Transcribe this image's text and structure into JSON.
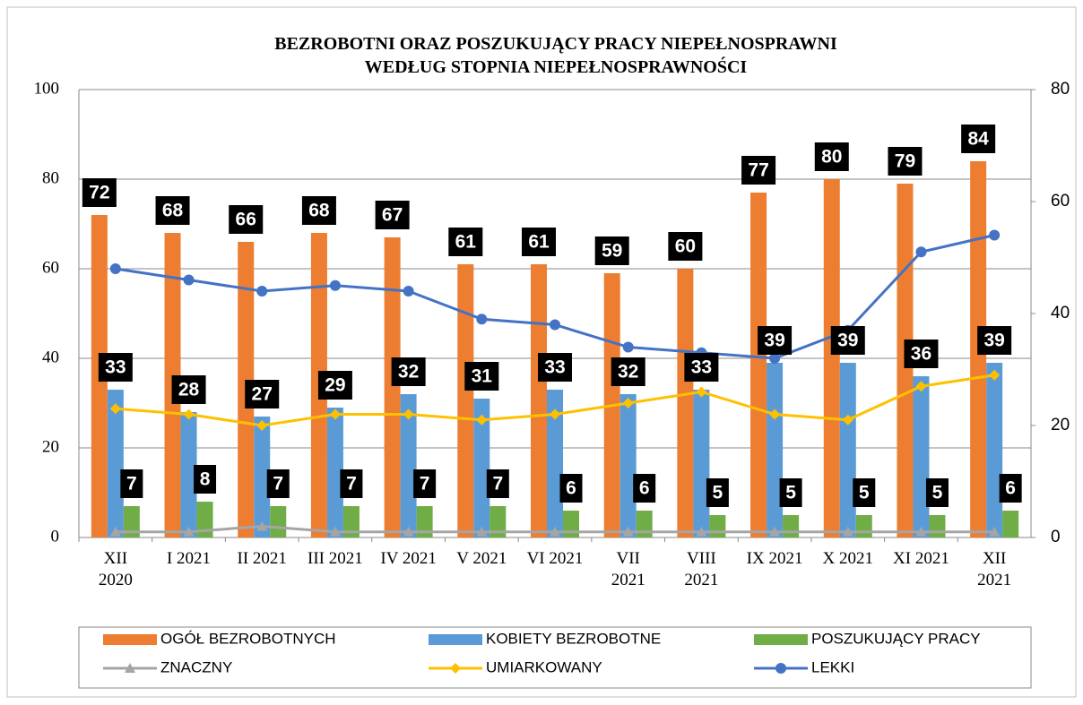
{
  "chart_data": {
    "type": "bar_line",
    "title": "BEZROBOTNI ORAZ POSZUKUJĄCY PRACY NIEPEŁNOSPRAWNI\nWEDŁUG STOPNIA NIEPEŁNOSPRAWNOŚCI",
    "categories": [
      "XII\n2020",
      "I 2021",
      "II 2021",
      "III 2021",
      "IV 2021",
      "V 2021",
      "VI 2021",
      "VII\n2021",
      "VIII\n2021",
      "IX 2021",
      "X 2021",
      "XI 2021",
      "XII\n2021"
    ],
    "series": [
      {
        "name": "OGÓŁ BEZROBOTNYCH",
        "type": "bar",
        "color": "#ed7d31",
        "values": [
          72,
          68,
          66,
          68,
          67,
          61,
          61,
          59,
          60,
          77,
          80,
          79,
          84
        ]
      },
      {
        "name": "KOBIETY BEZROBOTNE",
        "type": "bar",
        "color": "#5b9bd5",
        "values": [
          33,
          28,
          27,
          29,
          32,
          31,
          33,
          32,
          33,
          39,
          39,
          36,
          39
        ]
      },
      {
        "name": "POSZUKUJĄCY PRACY",
        "type": "bar",
        "color": "#70ad47",
        "values": [
          7,
          8,
          7,
          7,
          7,
          7,
          6,
          6,
          5,
          5,
          5,
          5,
          6
        ]
      },
      {
        "name": "ZNACZNY",
        "type": "line",
        "axis": "y2",
        "marker": "triangle",
        "color": "#a5a5a5",
        "values": [
          1,
          1,
          2,
          1,
          1,
          1,
          1,
          1,
          1,
          1,
          1,
          1,
          1
        ]
      },
      {
        "name": "UMIARKOWANY",
        "type": "line",
        "axis": "y2",
        "marker": "diamond",
        "color": "#ffc000",
        "values": [
          23,
          22,
          20,
          22,
          22,
          21,
          22,
          24,
          26,
          22,
          21,
          27,
          29
        ]
      },
      {
        "name": "LEKKI",
        "type": "line",
        "axis": "y2",
        "marker": "circle",
        "color": "#4472c4",
        "values": [
          48,
          46,
          44,
          45,
          44,
          39,
          38,
          34,
          33,
          32,
          37,
          51,
          54
        ]
      }
    ],
    "ylim": [
      0,
      100
    ],
    "yticks": [
      0,
      20,
      40,
      60,
      80,
      100
    ],
    "y2lim": [
      0,
      80
    ],
    "y2ticks": [
      0,
      20,
      40,
      60,
      80
    ],
    "grid": true,
    "legend": "bottom"
  }
}
